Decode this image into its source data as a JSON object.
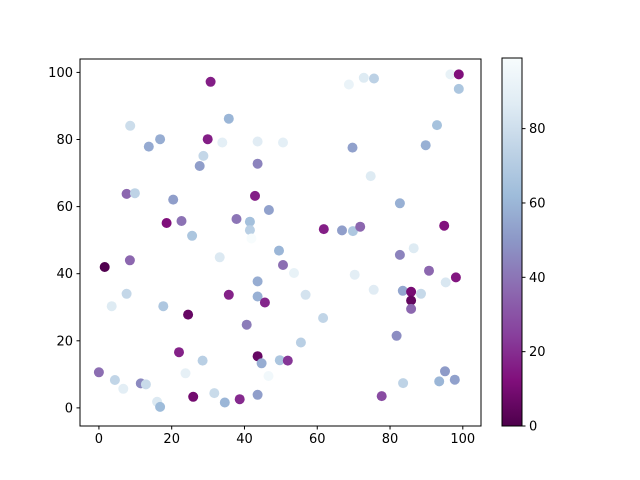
{
  "figure": {
    "background": "#ffffff",
    "plot_bg": "#ffffff",
    "spine_color": "#000000"
  },
  "chart_data": {
    "type": "scatter",
    "title": "",
    "xlabel": "",
    "ylabel": "",
    "grid": false,
    "marker_diameter_px": 10,
    "xlim": [
      -5.2,
      105.0
    ],
    "ylim": [
      -5.4,
      104.0
    ],
    "x_ticks": [
      0,
      20,
      40,
      60,
      80,
      100
    ],
    "y_ticks": [
      0,
      20,
      40,
      60,
      80,
      100
    ],
    "colormap": "BuPu_r",
    "colormap_stops_low_to_high": [
      "#4d004b",
      "#810f7c",
      "#88419d",
      "#8c6bb1",
      "#8c96c6",
      "#9ebcda",
      "#bfd3e6",
      "#e0ecf4",
      "#f7fcfd"
    ],
    "colorbar": {
      "vmin": 0,
      "vmax": 99,
      "ticks": [
        0,
        20,
        40,
        60,
        80
      ],
      "position": "right"
    },
    "points_xyc": [
      [
        30.7,
        97.2,
        16
      ],
      [
        8.6,
        84.1,
        79
      ],
      [
        16.8,
        80.1,
        57
      ],
      [
        13.7,
        77.9,
        56
      ],
      [
        29.9,
        80.1,
        16
      ],
      [
        28.7,
        75.1,
        76
      ],
      [
        27.7,
        72.1,
        52
      ],
      [
        7.6,
        63.8,
        36
      ],
      [
        9.9,
        64.0,
        74
      ],
      [
        20.4,
        62.1,
        52
      ],
      [
        18.6,
        55.1,
        12
      ],
      [
        22.7,
        55.7,
        39
      ],
      [
        25.6,
        51.3,
        67
      ],
      [
        68.7,
        96.4,
        92
      ],
      [
        35.7,
        86.2,
        60
      ],
      [
        33.9,
        79.1,
        89
      ],
      [
        43.6,
        79.4,
        87
      ],
      [
        50.6,
        79.1,
        89
      ],
      [
        43.6,
        72.8,
        44
      ],
      [
        42.9,
        63.2,
        16
      ],
      [
        46.7,
        59.0,
        53
      ],
      [
        37.8,
        56.3,
        40
      ],
      [
        41.5,
        55.5,
        64
      ],
      [
        41.5,
        53.0,
        72
      ],
      [
        41.9,
        50.5,
        99
      ],
      [
        61.8,
        53.3,
        16
      ],
      [
        66.8,
        52.9,
        52
      ],
      [
        69.8,
        52.7,
        68
      ],
      [
        71.8,
        54.0,
        36
      ],
      [
        72.8,
        98.4,
        86
      ],
      [
        75.6,
        98.2,
        73
      ],
      [
        96.6,
        99.4,
        91
      ],
      [
        98.9,
        99.4,
        12
      ],
      [
        98.9,
        95.1,
        67
      ],
      [
        92.9,
        84.3,
        65
      ],
      [
        89.8,
        78.3,
        58
      ],
      [
        69.7,
        77.6,
        53
      ],
      [
        74.7,
        69.1,
        86
      ],
      [
        82.7,
        61.0,
        58
      ],
      [
        94.9,
        54.3,
        13
      ],
      [
        1.6,
        42.0,
        1
      ],
      [
        8.5,
        44.0,
        36
      ],
      [
        7.6,
        34.0,
        76
      ],
      [
        3.5,
        30.3,
        86
      ],
      [
        17.7,
        30.3,
        68
      ],
      [
        24.5,
        27.8,
        6
      ],
      [
        22.0,
        16.6,
        17
      ],
      [
        28.5,
        14.1,
        72
      ],
      [
        23.8,
        10.3,
        90
      ],
      [
        0.0,
        10.6,
        38
      ],
      [
        4.4,
        8.3,
        75
      ],
      [
        6.7,
        5.7,
        88
      ],
      [
        11.5,
        7.3,
        46
      ],
      [
        12.9,
        7.0,
        78
      ],
      [
        16.0,
        1.8,
        85
      ],
      [
        16.8,
        0.3,
        62
      ],
      [
        25.9,
        3.3,
        9
      ],
      [
        31.7,
        4.4,
        78
      ],
      [
        34.6,
        1.6,
        60
      ],
      [
        38.7,
        2.6,
        19
      ],
      [
        43.6,
        3.9,
        52
      ],
      [
        33.2,
        44.9,
        85
      ],
      [
        49.5,
        46.9,
        60
      ],
      [
        50.6,
        42.6,
        38
      ],
      [
        53.6,
        40.2,
        91
      ],
      [
        43.6,
        37.7,
        57
      ],
      [
        35.7,
        33.7,
        17
      ],
      [
        43.6,
        33.2,
        58
      ],
      [
        45.6,
        31.4,
        18
      ],
      [
        56.8,
        33.7,
        82
      ],
      [
        61.6,
        26.8,
        75
      ],
      [
        40.6,
        24.8,
        42
      ],
      [
        55.5,
        19.5,
        72
      ],
      [
        43.6,
        15.4,
        6
      ],
      [
        44.7,
        13.3,
        57
      ],
      [
        49.7,
        14.2,
        67
      ],
      [
        51.9,
        14.1,
        22
      ],
      [
        46.6,
        9.5,
        96
      ],
      [
        82.7,
        45.6,
        44
      ],
      [
        86.5,
        47.6,
        86
      ],
      [
        70.3,
        39.7,
        88
      ],
      [
        90.7,
        40.9,
        36
      ],
      [
        98.1,
        38.9,
        14
      ],
      [
        95.3,
        37.4,
        84
      ],
      [
        75.5,
        35.2,
        87
      ],
      [
        83.5,
        34.9,
        55
      ],
      [
        85.8,
        34.6,
        10
      ],
      [
        88.5,
        34.0,
        77
      ],
      [
        85.8,
        32.0,
        5
      ],
      [
        85.8,
        29.5,
        36
      ],
      [
        81.8,
        21.5,
        47
      ],
      [
        95.1,
        10.9,
        51
      ],
      [
        93.5,
        7.9,
        60
      ],
      [
        97.8,
        8.4,
        53
      ],
      [
        83.6,
        7.4,
        74
      ],
      [
        77.7,
        3.5,
        28
      ]
    ]
  }
}
